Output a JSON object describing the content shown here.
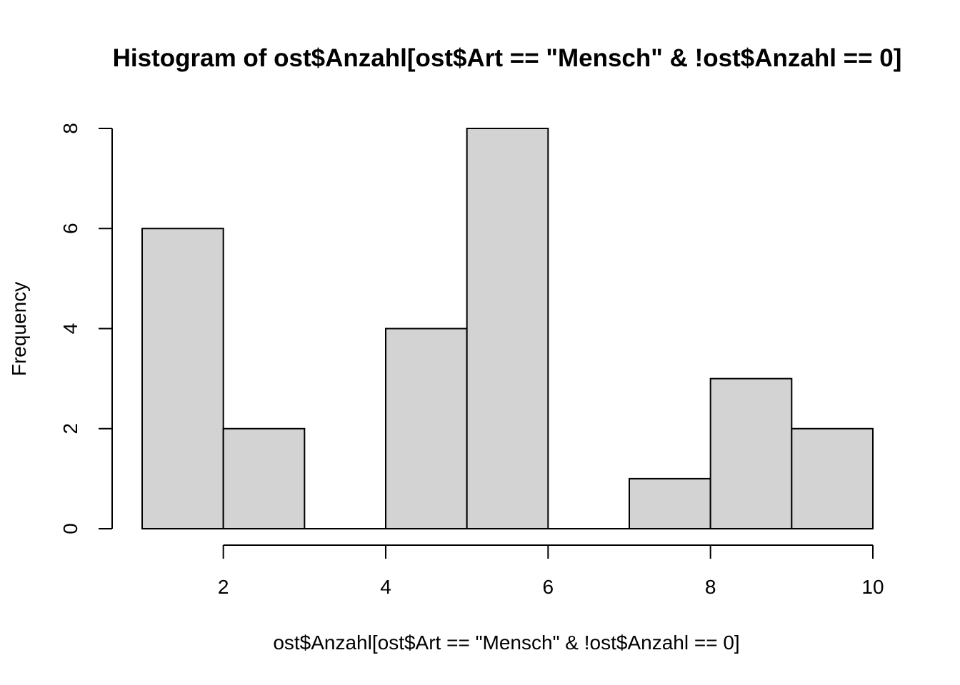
{
  "chart_data": {
    "type": "bar",
    "title": "Histogram of ost$Anzahl[ost$Art == \"Mensch\" & !ost$Anzahl == 0]",
    "xlabel": "ost$Anzahl[ost$Art == \"Mensch\" & !ost$Anzahl == 0]",
    "ylabel": "Frequency",
    "bins": [
      {
        "x0": 1,
        "x1": 2,
        "count": 6
      },
      {
        "x0": 2,
        "x1": 3,
        "count": 2
      },
      {
        "x0": 3,
        "x1": 4,
        "count": 0
      },
      {
        "x0": 4,
        "x1": 5,
        "count": 4
      },
      {
        "x0": 5,
        "x1": 6,
        "count": 8
      },
      {
        "x0": 6,
        "x1": 7,
        "count": 0
      },
      {
        "x0": 7,
        "x1": 8,
        "count": 1
      },
      {
        "x0": 8,
        "x1": 9,
        "count": 3
      },
      {
        "x0": 9,
        "x1": 10,
        "count": 2
      }
    ],
    "xticks": [
      2,
      4,
      6,
      8,
      10
    ],
    "yticks": [
      0,
      2,
      4,
      6,
      8
    ],
    "xlim": [
      1,
      10
    ],
    "ylim": [
      0,
      8
    ],
    "grid": false,
    "bar_color": "#d3d3d3",
    "edge_color": "#000000"
  }
}
